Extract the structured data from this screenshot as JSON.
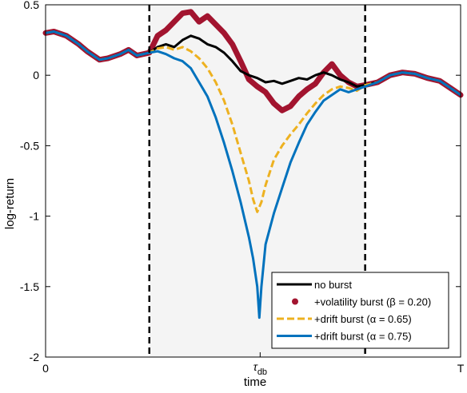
{
  "chart_data": {
    "type": "line",
    "xlabel": "time",
    "ylabel": "log-return",
    "ylim": [
      -2,
      0.5
    ],
    "xlim": [
      0,
      1
    ],
    "x_tick_labels": [
      {
        "x": 0,
        "label": "0"
      },
      {
        "x": 0.517,
        "label": "τ_db",
        "main": "τ",
        "sub": "db"
      },
      {
        "x": 1,
        "label": "T"
      }
    ],
    "y_ticks": [
      0.5,
      0,
      -0.5,
      -1,
      -1.5,
      -2
    ],
    "y_tick_labels": [
      "0.5",
      "0",
      "-0.5",
      "-1",
      "-1.5",
      "-2"
    ],
    "burst_window": {
      "start": 0.25,
      "end": 0.77,
      "shade": "#f4f4f4",
      "line_color": "#000000"
    },
    "legend": {
      "placement": "bottom-right",
      "entries": [
        {
          "label": "no burst",
          "style": "solid",
          "color": "#000000"
        },
        {
          "label": "+volatility burst (β = 0.20)",
          "style": "dots",
          "color": "#a2142f"
        },
        {
          "label": "+drift burst (α = 0.65)",
          "style": "dashed",
          "color": "#edb120"
        },
        {
          "label": "+drift burst (α = 0.75)",
          "style": "solid",
          "color": "#0072bd"
        }
      ]
    },
    "series": [
      {
        "name": "+volatility burst (β = 0.20)",
        "style": "dots",
        "color": "#a2142f",
        "x": [
          0,
          0.02,
          0.05,
          0.08,
          0.1,
          0.13,
          0.15,
          0.18,
          0.2,
          0.22,
          0.25,
          0.27,
          0.29,
          0.31,
          0.33,
          0.35,
          0.37,
          0.39,
          0.41,
          0.43,
          0.45,
          0.47,
          0.49,
          0.51,
          0.53,
          0.55,
          0.57,
          0.59,
          0.61,
          0.63,
          0.65,
          0.67,
          0.69,
          0.71,
          0.73,
          0.75,
          0.77,
          0.8,
          0.83,
          0.86,
          0.89,
          0.92,
          0.95,
          0.98,
          1
        ],
        "y": [
          0.3,
          0.31,
          0.28,
          0.22,
          0.17,
          0.11,
          0.12,
          0.15,
          0.18,
          0.14,
          0.16,
          0.28,
          0.32,
          0.38,
          0.44,
          0.45,
          0.38,
          0.42,
          0.36,
          0.3,
          0.22,
          0.1,
          -0.03,
          -0.08,
          -0.12,
          -0.2,
          -0.25,
          -0.22,
          -0.15,
          -0.1,
          -0.06,
          0.02,
          0.08,
          0.0,
          -0.05,
          -0.08,
          -0.07,
          -0.05,
          0.0,
          0.02,
          0.01,
          -0.02,
          -0.04,
          -0.1,
          -0.14
        ]
      },
      {
        "name": "no burst",
        "style": "solid",
        "color": "#000000",
        "x": [
          0,
          0.02,
          0.05,
          0.08,
          0.1,
          0.13,
          0.15,
          0.18,
          0.2,
          0.22,
          0.25,
          0.27,
          0.29,
          0.31,
          0.33,
          0.35,
          0.37,
          0.39,
          0.41,
          0.43,
          0.45,
          0.47,
          0.49,
          0.51,
          0.53,
          0.55,
          0.57,
          0.59,
          0.61,
          0.63,
          0.65,
          0.67,
          0.69,
          0.71,
          0.73,
          0.75,
          0.77,
          0.8,
          0.83,
          0.86,
          0.89,
          0.92,
          0.95,
          0.98,
          1
        ],
        "y": [
          0.3,
          0.31,
          0.28,
          0.22,
          0.17,
          0.11,
          0.12,
          0.15,
          0.18,
          0.14,
          0.16,
          0.2,
          0.22,
          0.2,
          0.25,
          0.28,
          0.26,
          0.22,
          0.2,
          0.16,
          0.1,
          0.03,
          0.0,
          -0.02,
          -0.05,
          -0.04,
          -0.06,
          -0.04,
          -0.02,
          -0.03,
          0.0,
          0.02,
          0.0,
          -0.03,
          -0.05,
          -0.08,
          -0.07,
          -0.05,
          0.0,
          0.02,
          0.01,
          -0.02,
          -0.04,
          -0.1,
          -0.14
        ]
      },
      {
        "name": "+drift burst (α = 0.65)",
        "style": "dashed",
        "color": "#edb120",
        "x": [
          0,
          0.02,
          0.05,
          0.08,
          0.1,
          0.13,
          0.15,
          0.18,
          0.2,
          0.22,
          0.25,
          0.27,
          0.29,
          0.31,
          0.33,
          0.35,
          0.37,
          0.39,
          0.41,
          0.43,
          0.45,
          0.47,
          0.49,
          0.5,
          0.51,
          0.52,
          0.53,
          0.55,
          0.57,
          0.59,
          0.61,
          0.63,
          0.65,
          0.67,
          0.69,
          0.71,
          0.73,
          0.75,
          0.77,
          0.8,
          0.83,
          0.86,
          0.89,
          0.92,
          0.95,
          0.98,
          1
        ],
        "y": [
          0.3,
          0.31,
          0.28,
          0.22,
          0.17,
          0.11,
          0.12,
          0.15,
          0.18,
          0.14,
          0.16,
          0.19,
          0.2,
          0.18,
          0.2,
          0.17,
          0.12,
          0.05,
          -0.05,
          -0.18,
          -0.35,
          -0.55,
          -0.75,
          -0.88,
          -0.97,
          -0.9,
          -0.78,
          -0.6,
          -0.5,
          -0.42,
          -0.35,
          -0.27,
          -0.2,
          -0.14,
          -0.1,
          -0.08,
          -0.09,
          -0.11,
          -0.07,
          -0.05,
          0.0,
          0.02,
          0.01,
          -0.02,
          -0.04,
          -0.1,
          -0.14
        ]
      },
      {
        "name": "+drift burst (α = 0.75)",
        "style": "solid",
        "color": "#0072bd",
        "x": [
          0,
          0.02,
          0.05,
          0.08,
          0.1,
          0.13,
          0.15,
          0.18,
          0.2,
          0.22,
          0.25,
          0.27,
          0.29,
          0.31,
          0.33,
          0.35,
          0.37,
          0.39,
          0.41,
          0.43,
          0.45,
          0.47,
          0.49,
          0.5,
          0.51,
          0.515,
          0.52,
          0.53,
          0.55,
          0.57,
          0.59,
          0.61,
          0.63,
          0.65,
          0.67,
          0.69,
          0.71,
          0.73,
          0.75,
          0.77,
          0.8,
          0.83,
          0.86,
          0.89,
          0.92,
          0.95,
          0.98,
          1
        ],
        "y": [
          0.3,
          0.31,
          0.28,
          0.22,
          0.17,
          0.11,
          0.12,
          0.15,
          0.18,
          0.14,
          0.16,
          0.17,
          0.15,
          0.12,
          0.1,
          0.05,
          -0.05,
          -0.15,
          -0.3,
          -0.48,
          -0.68,
          -0.9,
          -1.15,
          -1.3,
          -1.5,
          -1.72,
          -1.5,
          -1.2,
          -0.98,
          -0.8,
          -0.62,
          -0.48,
          -0.35,
          -0.26,
          -0.18,
          -0.14,
          -0.1,
          -0.12,
          -0.1,
          -0.08,
          -0.05,
          0.0,
          0.02,
          0.01,
          -0.02,
          -0.04,
          -0.1,
          -0.14
        ]
      }
    ]
  }
}
